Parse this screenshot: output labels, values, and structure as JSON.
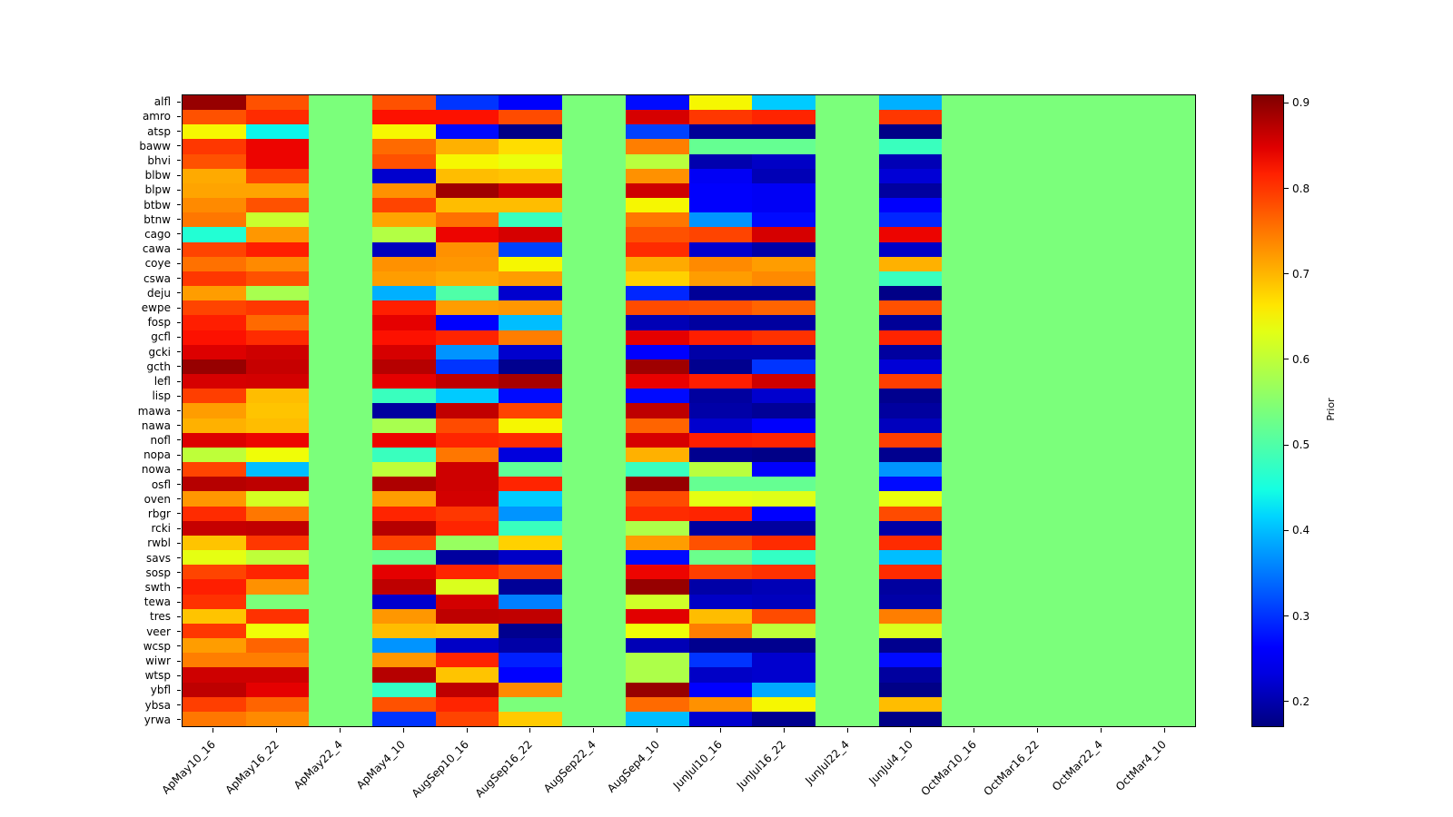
{
  "figure": {
    "background": "#ffffff"
  },
  "chart_data": {
    "type": "heatmap",
    "title": "",
    "xlabel": "",
    "ylabel": "",
    "colormap": "jet",
    "vmin": 0.17,
    "vmax": 0.91,
    "grid": false,
    "legend_position": "right-colorbar",
    "colorbar_label": "Prior",
    "colorbar_ticks": [
      0.2,
      0.3,
      0.4,
      0.5,
      0.6,
      0.7,
      0.8,
      0.9
    ],
    "columns": [
      "ApMay10_16",
      "ApMay16_22",
      "ApMay22_4",
      "ApMay4_10",
      "AugSep10_16",
      "AugSep16_22",
      "AugSep22_4",
      "AugSep4_10",
      "JunJul10_16",
      "JunJul16_22",
      "JunJul22_4",
      "JunJul4_10",
      "OctMar10_16",
      "OctMar16_22",
      "OctMar22_4",
      "OctMar4_10"
    ],
    "rows": [
      "alfl",
      "amro",
      "atsp",
      "baww",
      "bhvi",
      "blbw",
      "blpw",
      "btbw",
      "btnw",
      "cago",
      "cawa",
      "coye",
      "cswa",
      "deju",
      "ewpe",
      "fosp",
      "gcfl",
      "gcki",
      "gcth",
      "lefl",
      "lisp",
      "mawa",
      "nawa",
      "nofl",
      "nopa",
      "nowa",
      "osfl",
      "oven",
      "rbgr",
      "rcki",
      "rwbl",
      "savs",
      "sosp",
      "swth",
      "tewa",
      "tres",
      "veer",
      "wcsp",
      "wiwr",
      "wtsp",
      "ybfl",
      "ybsa",
      "yrwa"
    ],
    "values": [
      [
        0.895,
        0.78,
        0.54,
        0.78,
        0.3,
        0.25,
        0.54,
        0.27,
        0.65,
        0.41,
        0.54,
        0.39,
        0.54,
        0.54,
        0.54,
        0.54
      ],
      [
        0.78,
        0.81,
        0.54,
        0.83,
        0.83,
        0.785,
        0.54,
        0.855,
        0.8,
        0.815,
        0.54,
        0.8,
        0.54,
        0.54,
        0.54,
        0.54
      ],
      [
        0.65,
        0.44,
        0.54,
        0.65,
        0.27,
        0.175,
        0.54,
        0.31,
        0.185,
        0.185,
        0.54,
        0.175,
        0.54,
        0.54,
        0.54,
        0.54
      ],
      [
        0.8,
        0.84,
        0.54,
        0.76,
        0.705,
        0.67,
        0.54,
        0.745,
        0.52,
        0.52,
        0.54,
        0.48,
        0.54,
        0.54,
        0.54,
        0.54
      ],
      [
        0.78,
        0.84,
        0.54,
        0.78,
        0.65,
        0.64,
        0.54,
        0.595,
        0.2,
        0.215,
        0.54,
        0.205,
        0.54,
        0.54,
        0.54,
        0.54
      ],
      [
        0.71,
        0.79,
        0.54,
        0.22,
        0.695,
        0.69,
        0.54,
        0.73,
        0.245,
        0.205,
        0.54,
        0.225,
        0.54,
        0.54,
        0.54,
        0.54
      ],
      [
        0.715,
        0.715,
        0.54,
        0.73,
        0.89,
        0.86,
        0.54,
        0.86,
        0.25,
        0.245,
        0.54,
        0.19,
        0.54,
        0.54,
        0.54,
        0.54
      ],
      [
        0.735,
        0.78,
        0.54,
        0.79,
        0.695,
        0.695,
        0.54,
        0.65,
        0.25,
        0.245,
        0.54,
        0.25,
        0.54,
        0.54,
        0.54,
        0.54
      ],
      [
        0.75,
        0.61,
        0.54,
        0.715,
        0.755,
        0.48,
        0.54,
        0.75,
        0.37,
        0.27,
        0.54,
        0.29,
        0.54,
        0.54,
        0.54,
        0.54
      ],
      [
        0.46,
        0.725,
        0.54,
        0.59,
        0.84,
        0.855,
        0.54,
        0.78,
        0.79,
        0.855,
        0.54,
        0.84,
        0.54,
        0.54,
        0.54,
        0.54
      ],
      [
        0.79,
        0.82,
        0.54,
        0.21,
        0.73,
        0.31,
        0.54,
        0.81,
        0.22,
        0.195,
        0.54,
        0.215,
        0.54,
        0.54,
        0.54,
        0.54
      ],
      [
        0.755,
        0.735,
        0.54,
        0.73,
        0.725,
        0.65,
        0.54,
        0.71,
        0.735,
        0.72,
        0.54,
        0.705,
        0.54,
        0.54,
        0.54,
        0.54
      ],
      [
        0.8,
        0.78,
        0.54,
        0.72,
        0.71,
        0.72,
        0.54,
        0.68,
        0.72,
        0.735,
        0.54,
        0.48,
        0.54,
        0.54,
        0.54,
        0.54
      ],
      [
        0.72,
        0.58,
        0.54,
        0.39,
        0.5,
        0.22,
        0.54,
        0.29,
        0.185,
        0.185,
        0.54,
        0.175,
        0.54,
        0.54,
        0.54,
        0.54
      ],
      [
        0.79,
        0.8,
        0.54,
        0.82,
        0.72,
        0.725,
        0.54,
        0.785,
        0.78,
        0.765,
        0.54,
        0.78,
        0.54,
        0.54,
        0.54,
        0.54
      ],
      [
        0.82,
        0.76,
        0.54,
        0.845,
        0.25,
        0.4,
        0.54,
        0.205,
        0.19,
        0.19,
        0.54,
        0.185,
        0.54,
        0.54,
        0.54,
        0.54
      ],
      [
        0.83,
        0.81,
        0.54,
        0.83,
        0.815,
        0.745,
        0.54,
        0.845,
        0.82,
        0.805,
        0.54,
        0.815,
        0.54,
        0.54,
        0.54,
        0.54
      ],
      [
        0.85,
        0.86,
        0.54,
        0.855,
        0.37,
        0.22,
        0.54,
        0.26,
        0.195,
        0.195,
        0.54,
        0.19,
        0.54,
        0.54,
        0.54,
        0.54
      ],
      [
        0.895,
        0.865,
        0.54,
        0.875,
        0.3,
        0.18,
        0.54,
        0.89,
        0.18,
        0.3,
        0.54,
        0.225,
        0.54,
        0.54,
        0.54,
        0.54
      ],
      [
        0.855,
        0.857,
        0.54,
        0.845,
        0.87,
        0.885,
        0.54,
        0.843,
        0.82,
        0.86,
        0.54,
        0.795,
        0.54,
        0.54,
        0.54,
        0.54
      ],
      [
        0.795,
        0.695,
        0.54,
        0.48,
        0.41,
        0.27,
        0.54,
        0.27,
        0.19,
        0.22,
        0.54,
        0.18,
        0.54,
        0.54,
        0.54,
        0.54
      ],
      [
        0.72,
        0.69,
        0.54,
        0.19,
        0.868,
        0.79,
        0.54,
        0.87,
        0.195,
        0.185,
        0.54,
        0.19,
        0.54,
        0.54,
        0.54,
        0.54
      ],
      [
        0.705,
        0.695,
        0.54,
        0.58,
        0.785,
        0.65,
        0.54,
        0.765,
        0.22,
        0.25,
        0.54,
        0.21,
        0.54,
        0.54,
        0.54,
        0.54
      ],
      [
        0.85,
        0.84,
        0.54,
        0.84,
        0.815,
        0.81,
        0.54,
        0.855,
        0.82,
        0.815,
        0.54,
        0.795,
        0.54,
        0.54,
        0.54,
        0.54
      ],
      [
        0.6,
        0.645,
        0.54,
        0.48,
        0.75,
        0.23,
        0.54,
        0.705,
        0.18,
        0.175,
        0.54,
        0.18,
        0.54,
        0.54,
        0.54,
        0.54
      ],
      [
        0.79,
        0.4,
        0.54,
        0.6,
        0.86,
        0.515,
        0.54,
        0.48,
        0.595,
        0.25,
        0.54,
        0.37,
        0.54,
        0.54,
        0.54,
        0.54
      ],
      [
        0.875,
        0.87,
        0.54,
        0.88,
        0.86,
        0.815,
        0.54,
        0.895,
        0.52,
        0.52,
        0.54,
        0.27,
        0.54,
        0.54,
        0.54,
        0.54
      ],
      [
        0.725,
        0.62,
        0.54,
        0.72,
        0.857,
        0.41,
        0.54,
        0.785,
        0.635,
        0.63,
        0.54,
        0.64,
        0.54,
        0.54,
        0.54,
        0.54
      ],
      [
        0.81,
        0.75,
        0.54,
        0.815,
        0.8,
        0.37,
        0.54,
        0.81,
        0.815,
        0.26,
        0.54,
        0.785,
        0.54,
        0.54,
        0.54,
        0.54
      ],
      [
        0.865,
        0.868,
        0.54,
        0.875,
        0.815,
        0.48,
        0.54,
        0.585,
        0.19,
        0.19,
        0.54,
        0.195,
        0.54,
        0.54,
        0.54,
        0.54
      ],
      [
        0.69,
        0.8,
        0.54,
        0.79,
        0.565,
        0.68,
        0.54,
        0.72,
        0.78,
        0.81,
        0.54,
        0.81,
        0.54,
        0.54,
        0.54,
        0.54
      ],
      [
        0.635,
        0.6,
        0.54,
        0.525,
        0.19,
        0.215,
        0.54,
        0.27,
        0.525,
        0.475,
        0.54,
        0.4,
        0.54,
        0.54,
        0.54,
        0.54
      ],
      [
        0.79,
        0.815,
        0.54,
        0.845,
        0.815,
        0.785,
        0.54,
        0.84,
        0.795,
        0.805,
        0.54,
        0.81,
        0.54,
        0.54,
        0.54,
        0.54
      ],
      [
        0.82,
        0.73,
        0.54,
        0.87,
        0.625,
        0.185,
        0.54,
        0.895,
        0.195,
        0.205,
        0.54,
        0.19,
        0.54,
        0.54,
        0.54,
        0.54
      ],
      [
        0.805,
        0.54,
        0.54,
        0.22,
        0.857,
        0.355,
        0.54,
        0.615,
        0.215,
        0.21,
        0.54,
        0.195,
        0.54,
        0.54,
        0.54,
        0.54
      ],
      [
        0.69,
        0.805,
        0.54,
        0.725,
        0.87,
        0.868,
        0.54,
        0.847,
        0.695,
        0.785,
        0.54,
        0.745,
        0.54,
        0.54,
        0.54,
        0.54
      ],
      [
        0.8,
        0.645,
        0.54,
        0.695,
        0.69,
        0.18,
        0.54,
        0.645,
        0.745,
        0.6,
        0.54,
        0.625,
        0.54,
        0.54,
        0.54,
        0.54
      ],
      [
        0.72,
        0.765,
        0.54,
        0.37,
        0.215,
        0.195,
        0.54,
        0.205,
        0.18,
        0.18,
        0.54,
        0.18,
        0.54,
        0.54,
        0.54,
        0.54
      ],
      [
        0.745,
        0.745,
        0.54,
        0.725,
        0.815,
        0.285,
        0.54,
        0.585,
        0.3,
        0.22,
        0.54,
        0.27,
        0.54,
        0.54,
        0.54,
        0.54
      ],
      [
        0.86,
        0.86,
        0.54,
        0.875,
        0.69,
        0.26,
        0.54,
        0.585,
        0.215,
        0.22,
        0.54,
        0.19,
        0.54,
        0.54,
        0.54,
        0.54
      ],
      [
        0.87,
        0.845,
        0.54,
        0.475,
        0.87,
        0.735,
        0.54,
        0.895,
        0.26,
        0.385,
        0.54,
        0.175,
        0.54,
        0.54,
        0.54,
        0.54
      ],
      [
        0.795,
        0.765,
        0.54,
        0.78,
        0.815,
        0.54,
        0.54,
        0.76,
        0.73,
        0.65,
        0.54,
        0.695,
        0.54,
        0.54,
        0.54,
        0.54
      ],
      [
        0.75,
        0.735,
        0.54,
        0.3,
        0.79,
        0.685,
        0.54,
        0.4,
        0.22,
        0.18,
        0.54,
        0.175,
        0.54,
        0.54,
        0.54,
        0.54
      ]
    ]
  }
}
